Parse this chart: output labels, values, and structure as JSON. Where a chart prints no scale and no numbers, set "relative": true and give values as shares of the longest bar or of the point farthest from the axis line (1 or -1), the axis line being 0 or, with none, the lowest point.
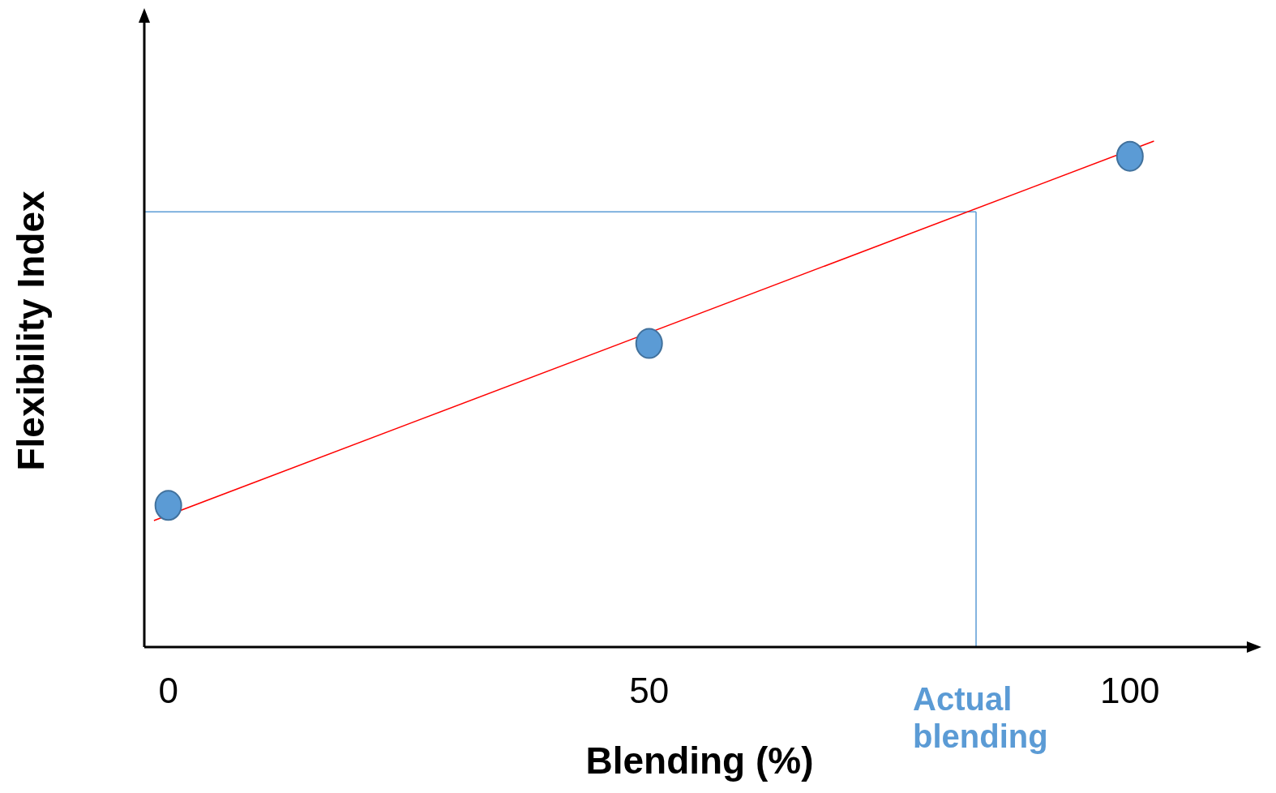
{
  "chart_data": {
    "type": "scatter",
    "relative": true,
    "xlabel": "Blending (%)",
    "ylabel": "Flexibility Index",
    "xlim": [
      -2.5,
      113
    ],
    "xticks": [
      0,
      50,
      100
    ],
    "grid": false,
    "marker": "circle",
    "series": [
      {
        "color": "#5b9bd5",
        "x": [
          0,
          50,
          100
        ],
        "values": [
          0.28,
          0.6,
          0.97
        ]
      },
      {
        "type": "line",
        "color": "#ff0000",
        "x": [
          -1.5,
          102.5
        ],
        "values": [
          0.25,
          1.0
        ],
        "marker": "none"
      }
    ],
    "ref_lines": [
      {
        "axis": "x",
        "value": 84,
        "label": "Actual blending",
        "color": "#5b9bd5"
      },
      {
        "axis": "y",
        "value": 0.86,
        "color": "#5b9bd5"
      }
    ]
  }
}
